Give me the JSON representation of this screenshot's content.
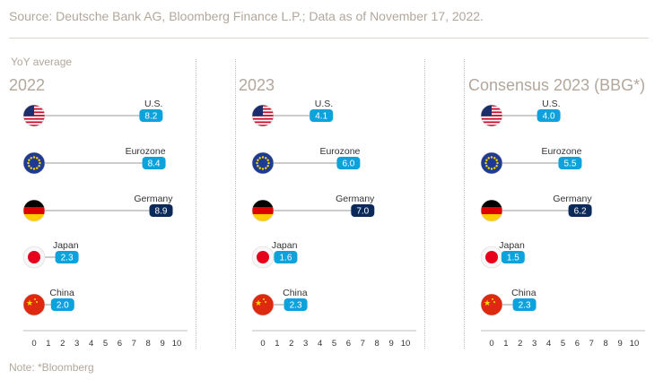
{
  "header": {
    "source": "Source: Deutsche Bank AG, Bloomberg Finance L.P.; Data as of November 17, 2022.",
    "yoy_label": "YoY average"
  },
  "footer": {
    "note": "Note: *Bloomberg"
  },
  "colors": {
    "light_bubble": "#0da2dc",
    "dark_bubble": "#0b2a59",
    "line": "#9a9a9a",
    "muted_text": "#b3a79b"
  },
  "chart_data": [
    {
      "type": "bar",
      "title": "2022",
      "categories": [
        "U.S.",
        "Eurozone",
        "Germany",
        "Japan",
        "China"
      ],
      "values": [
        8.2,
        8.4,
        8.9,
        2.3,
        2.0
      ],
      "highlight": "Germany",
      "xlim": [
        0,
        10
      ],
      "xticks": [
        "0",
        "1",
        "2",
        "3",
        "4",
        "5",
        "6",
        "7",
        "8",
        "9",
        "10"
      ]
    },
    {
      "type": "bar",
      "title": "2023",
      "categories": [
        "U.S.",
        "Eurozone",
        "Germany",
        "Japan",
        "China"
      ],
      "values": [
        4.1,
        6.0,
        7.0,
        1.6,
        2.3
      ],
      "highlight": "Germany",
      "xlim": [
        0,
        10
      ],
      "xticks": [
        "0",
        "1",
        "2",
        "3",
        "4",
        "5",
        "6",
        "7",
        "8",
        "9",
        "10"
      ]
    },
    {
      "type": "bar",
      "title": "Consensus 2023 (BBG*)",
      "categories": [
        "U.S.",
        "Eurozone",
        "Germany",
        "Japan",
        "China"
      ],
      "values": [
        4.0,
        5.5,
        6.2,
        1.5,
        2.3
      ],
      "highlight": "Germany",
      "xlim": [
        0,
        10
      ],
      "xticks": [
        "0",
        "1",
        "2",
        "3",
        "4",
        "5",
        "6",
        "7",
        "8",
        "9",
        "10"
      ]
    }
  ]
}
